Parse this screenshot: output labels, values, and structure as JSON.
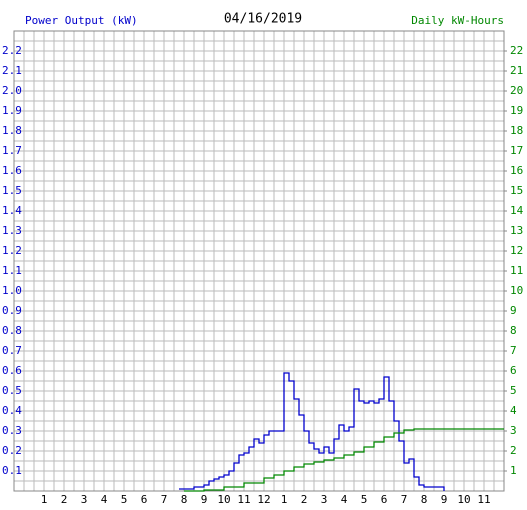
{
  "chart_data": {
    "type": "line",
    "title": "04/16/2019",
    "y_label": "Power Output (kW)",
    "y2_label": "Daily kW-Hours",
    "xlim": [
      -0.5,
      24
    ],
    "xticks": [
      1,
      2,
      3,
      4,
      5,
      6,
      7,
      8,
      9,
      10,
      11,
      12,
      {
        "value": 13,
        "label": "1"
      },
      {
        "value": 14,
        "label": "2"
      },
      {
        "value": 15,
        "label": "3"
      },
      {
        "value": 16,
        "label": "4"
      },
      {
        "value": 17,
        "label": "5"
      },
      {
        "value": 18,
        "label": "6"
      },
      {
        "value": 19,
        "label": "7"
      },
      {
        "value": 20,
        "label": "8"
      },
      {
        "value": 21,
        "label": "9"
      },
      {
        "value": 22,
        "label": "10"
      },
      {
        "value": 23,
        "label": "11"
      }
    ],
    "ylim": [
      0,
      2.3
    ],
    "yticks": [
      0.1,
      0.2,
      0.3,
      0.4,
      0.5,
      0.6,
      0.7,
      0.8,
      0.9,
      {
        "value": 1,
        "label": "1.0"
      },
      1.1,
      1.2,
      1.3,
      1.4,
      1.5,
      1.6,
      1.7,
      1.8,
      1.9,
      {
        "value": 2,
        "label": "2.0"
      },
      2.1,
      2.2
    ],
    "y2lim": [
      0,
      23
    ],
    "y2ticks": [
      1,
      2,
      3,
      4,
      5,
      6,
      7,
      8,
      9,
      10,
      11,
      12,
      13,
      14,
      15,
      16,
      17,
      18,
      19,
      20,
      21,
      22
    ],
    "grid": true,
    "series": [
      {
        "name": "Power Output (kW)",
        "color": "#0000cc",
        "step": true,
        "x": [
          7.75,
          8.5,
          9,
          9.25,
          9.5,
          9.75,
          10,
          10.25,
          10.5,
          10.75,
          11,
          11.25,
          11.5,
          11.75,
          12,
          12.25,
          12.75,
          13,
          13.25,
          13.5,
          13.75,
          14,
          14.25,
          14.5,
          14.75,
          15,
          15.25,
          15.5,
          15.75,
          16,
          16.25,
          16.5,
          16.75,
          17,
          17.25,
          17.5,
          17.75,
          18,
          18.25,
          18.5,
          18.75,
          19,
          19.25,
          19.5,
          19.75,
          20,
          21
        ],
        "values": [
          0.01,
          0.02,
          0.03,
          0.05,
          0.06,
          0.07,
          0.08,
          0.1,
          0.14,
          0.18,
          0.19,
          0.22,
          0.26,
          0.24,
          0.28,
          0.3,
          0.3,
          0.59,
          0.55,
          0.46,
          0.38,
          0.3,
          0.24,
          0.21,
          0.19,
          0.22,
          0.19,
          0.26,
          0.33,
          0.3,
          0.32,
          0.51,
          0.45,
          0.44,
          0.45,
          0.44,
          0.46,
          0.57,
          0.45,
          0.35,
          0.25,
          0.14,
          0.16,
          0.07,
          0.03,
          0.02,
          0
        ]
      },
      {
        "name": "Daily kW-Hours",
        "color": "#008800",
        "step": true,
        "axis": "y2",
        "x": [
          8,
          9,
          10,
          11,
          12,
          12.5,
          13,
          13.5,
          14,
          14.5,
          15,
          15.5,
          16,
          16.5,
          17,
          17.5,
          18,
          18.5,
          19,
          19.5,
          24
        ],
        "values": [
          0,
          0.05,
          0.2,
          0.4,
          0.65,
          0.8,
          1,
          1.2,
          1.35,
          1.45,
          1.55,
          1.65,
          1.8,
          1.95,
          2.2,
          2.45,
          2.7,
          2.9,
          3.05,
          3.1,
          3.1
        ]
      }
    ]
  }
}
